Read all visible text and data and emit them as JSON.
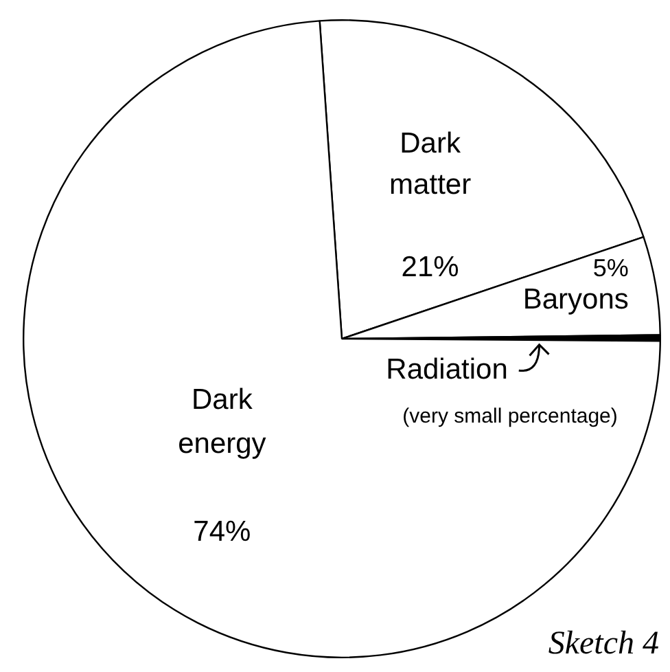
{
  "chart_data": {
    "type": "pie",
    "categories": [
      "Dark matter",
      "Baryons",
      "Radiation",
      "Dark energy"
    ],
    "values": [
      21,
      5,
      0.3,
      74
    ],
    "colors": [
      "#ffffff",
      "#ffffff",
      "#000000",
      "#ffffff"
    ],
    "value_labels": [
      "21%",
      "5%",
      null,
      "74%"
    ],
    "annotations": [
      "(very small percentage)",
      "Sketch 4"
    ]
  }
}
